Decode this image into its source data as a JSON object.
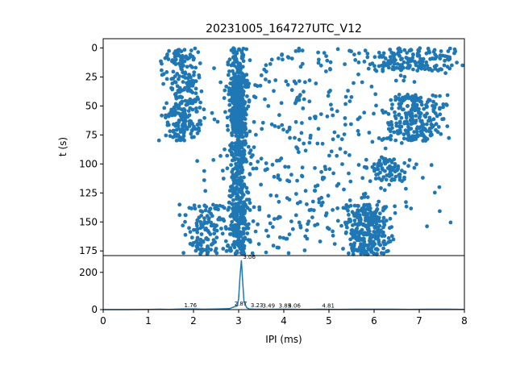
{
  "chart_data": [
    {
      "type": "scatter",
      "title": "20231005_164727UTC_V12",
      "xlabel": "",
      "ylabel": "t (s)",
      "xlim": [
        0,
        8
      ],
      "ylim": [
        179,
        -8
      ],
      "y_inverted": true,
      "x_ticks_shown": false,
      "yticks": [
        0,
        25,
        50,
        75,
        100,
        125,
        150,
        175
      ],
      "ytick_labels": [
        "0",
        "25",
        "50",
        "75",
        "100",
        "125",
        "150",
        "175"
      ],
      "marker_color": "#1f77b4",
      "grid": false,
      "point_count_approx": 2400,
      "density_regions_note_xy": [
        {
          "x": [
            1.0,
            2.0
          ],
          "y": [
            0,
            80
          ]
        },
        {
          "x": [
            2.8,
            3.2
          ],
          "y": [
            0,
            178
          ]
        },
        {
          "x": [
            5.3,
            6.3
          ],
          "y": [
            140,
            178
          ]
        },
        {
          "x": [
            6.2,
            7.5
          ],
          "y": [
            40,
            80
          ]
        },
        {
          "x": [
            5.8,
            8.0
          ],
          "y": [
            0,
            20
          ]
        }
      ]
    },
    {
      "type": "line",
      "xlabel": "IPI (ms)",
      "ylabel": "",
      "xlim": [
        0,
        8
      ],
      "ylim": [
        0,
        290
      ],
      "xticks": [
        0,
        1,
        2,
        3,
        4,
        5,
        6,
        7,
        8
      ],
      "xtick_labels": [
        "0",
        "1",
        "2",
        "3",
        "4",
        "5",
        "6",
        "7",
        "8"
      ],
      "yticks": [
        0,
        200
      ],
      "ytick_labels": [
        "0",
        "200"
      ],
      "line_color": "#1f77b4",
      "grid": false,
      "x": [
        0,
        0.5,
        0.98,
        1.05,
        1.25,
        1.45,
        1.76,
        2.0,
        2.2,
        2.5,
        2.8,
        2.87,
        2.97,
        3.0,
        3.03,
        3.06,
        3.09,
        3.12,
        3.18,
        3.23,
        3.35,
        3.49,
        3.6,
        3.85,
        4.06,
        4.4,
        4.81,
        5.2,
        5.6,
        6.0,
        6.4,
        6.8,
        7.2,
        7.6,
        8.0
      ],
      "y": [
        0,
        0,
        1,
        1,
        2,
        1,
        3,
        4,
        2,
        3,
        5,
        12,
        20,
        60,
        180,
        265,
        150,
        40,
        10,
        4,
        2,
        2,
        1,
        2,
        2,
        1,
        2,
        1,
        2,
        2,
        2,
        1,
        2,
        2,
        1
      ],
      "annotations": [
        {
          "x": 3.06,
          "y": 265,
          "text": "3.06"
        },
        {
          "x": 2.87,
          "y": 12,
          "text": "2.87"
        },
        {
          "x": 3.23,
          "y": 4,
          "text": "3.23"
        },
        {
          "x": 3.49,
          "y": 2,
          "text": "3.49"
        },
        {
          "x": 3.85,
          "y": 2,
          "text": "3.85"
        },
        {
          "x": 4.06,
          "y": 2,
          "text": "4.06"
        },
        {
          "x": 4.81,
          "y": 2,
          "text": "4.81"
        },
        {
          "x": 1.76,
          "y": 5,
          "text": "1.76"
        }
      ]
    }
  ]
}
